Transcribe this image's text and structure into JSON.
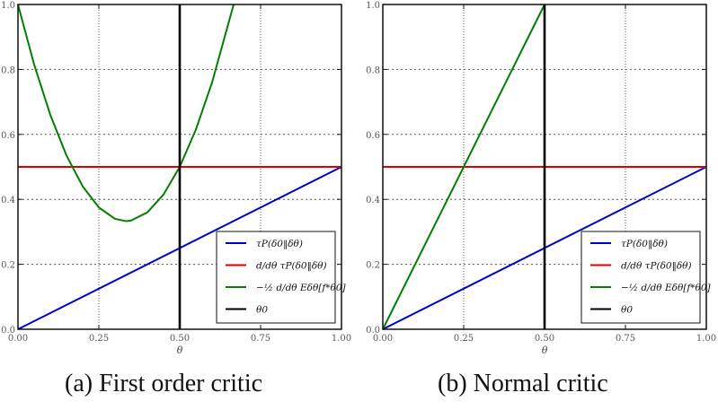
{
  "chart_data": [
    {
      "type": "line",
      "caption": "(a) First order critic",
      "title": "",
      "xlabel": "θ",
      "ylabel": "",
      "xlim": [
        0,
        1
      ],
      "ylim": [
        0,
        1
      ],
      "xticks": [
        "0.00",
        "0.25",
        "0.50",
        "0.75",
        "1.00"
      ],
      "yticks": [
        "0.0",
        "0.2",
        "0.4",
        "0.6",
        "0.8",
        "1.0"
      ],
      "grid": true,
      "legend_position": "lower right",
      "series": [
        {
          "name": "τP(δ0‖δθ)",
          "color": "#0000cc",
          "x": [
            0,
            1
          ],
          "y": [
            0,
            0.5
          ]
        },
        {
          "name": "d/dθ τP(δ0‖δθ)",
          "color": "#dd0000",
          "x": [
            0,
            1
          ],
          "y": [
            0.5,
            0.5
          ]
        },
        {
          "name": "−½ d/dθ Eδθ[f*θ0]",
          "color": "#008000",
          "x": [
            0,
            0.05,
            0.1,
            0.15,
            0.2,
            0.25,
            0.3,
            0.3333,
            0.35,
            0.4,
            0.45,
            0.5,
            0.55,
            0.6,
            0.6667
          ],
          "y": [
            1.0,
            0.815,
            0.66,
            0.535,
            0.44,
            0.375,
            0.34,
            0.333,
            0.335,
            0.36,
            0.415,
            0.5,
            0.615,
            0.76,
            1.0
          ]
        },
        {
          "name": "θ0",
          "color": "#000000",
          "x": [
            0.5,
            0.5
          ],
          "y": [
            0,
            1
          ]
        }
      ]
    },
    {
      "type": "line",
      "caption": "(b) Normal critic",
      "title": "",
      "xlabel": "θ",
      "ylabel": "",
      "xlim": [
        0,
        1
      ],
      "ylim": [
        0,
        1
      ],
      "xticks": [
        "0.00",
        "0.25",
        "0.50",
        "0.75",
        "1.00"
      ],
      "yticks": [
        "0.0",
        "0.2",
        "0.4",
        "0.6",
        "0.8",
        "1.0"
      ],
      "grid": true,
      "legend_position": "lower right",
      "series": [
        {
          "name": "τP(δ0‖δθ)",
          "color": "#0000cc",
          "x": [
            0,
            1
          ],
          "y": [
            0,
            0.5
          ]
        },
        {
          "name": "d/dθ τP(δ0‖δθ)",
          "color": "#dd0000",
          "x": [
            0,
            1
          ],
          "y": [
            0.5,
            0.5
          ]
        },
        {
          "name": "−½ d/dθ Eδθ[f*θ0]",
          "color": "#008000",
          "x": [
            0,
            0.5
          ],
          "y": [
            0,
            1.0
          ]
        },
        {
          "name": "θ0",
          "color": "#000000",
          "x": [
            0.5,
            0.5
          ],
          "y": [
            0,
            1
          ]
        }
      ]
    }
  ],
  "captions": {
    "left": "(a) First order critic",
    "right": "(b) Normal critic"
  },
  "axis": {
    "xlabel": "θ",
    "xticks": [
      "0.00",
      "0.25",
      "0.50",
      "0.75",
      "1.00"
    ],
    "yticks": [
      "0.0",
      "0.2",
      "0.4",
      "0.6",
      "0.8",
      "1.0"
    ]
  },
  "legend": {
    "items": [
      {
        "label": "τP(δ0‖δθ)",
        "color": "#0000cc"
      },
      {
        "label": "d/dθ τP(δ0‖δθ)",
        "color": "#dd0000"
      },
      {
        "label": "−½ d/dθ Eδθ[f*θ0]",
        "color": "#008000"
      },
      {
        "label": "θ0",
        "color": "#000000"
      }
    ]
  }
}
